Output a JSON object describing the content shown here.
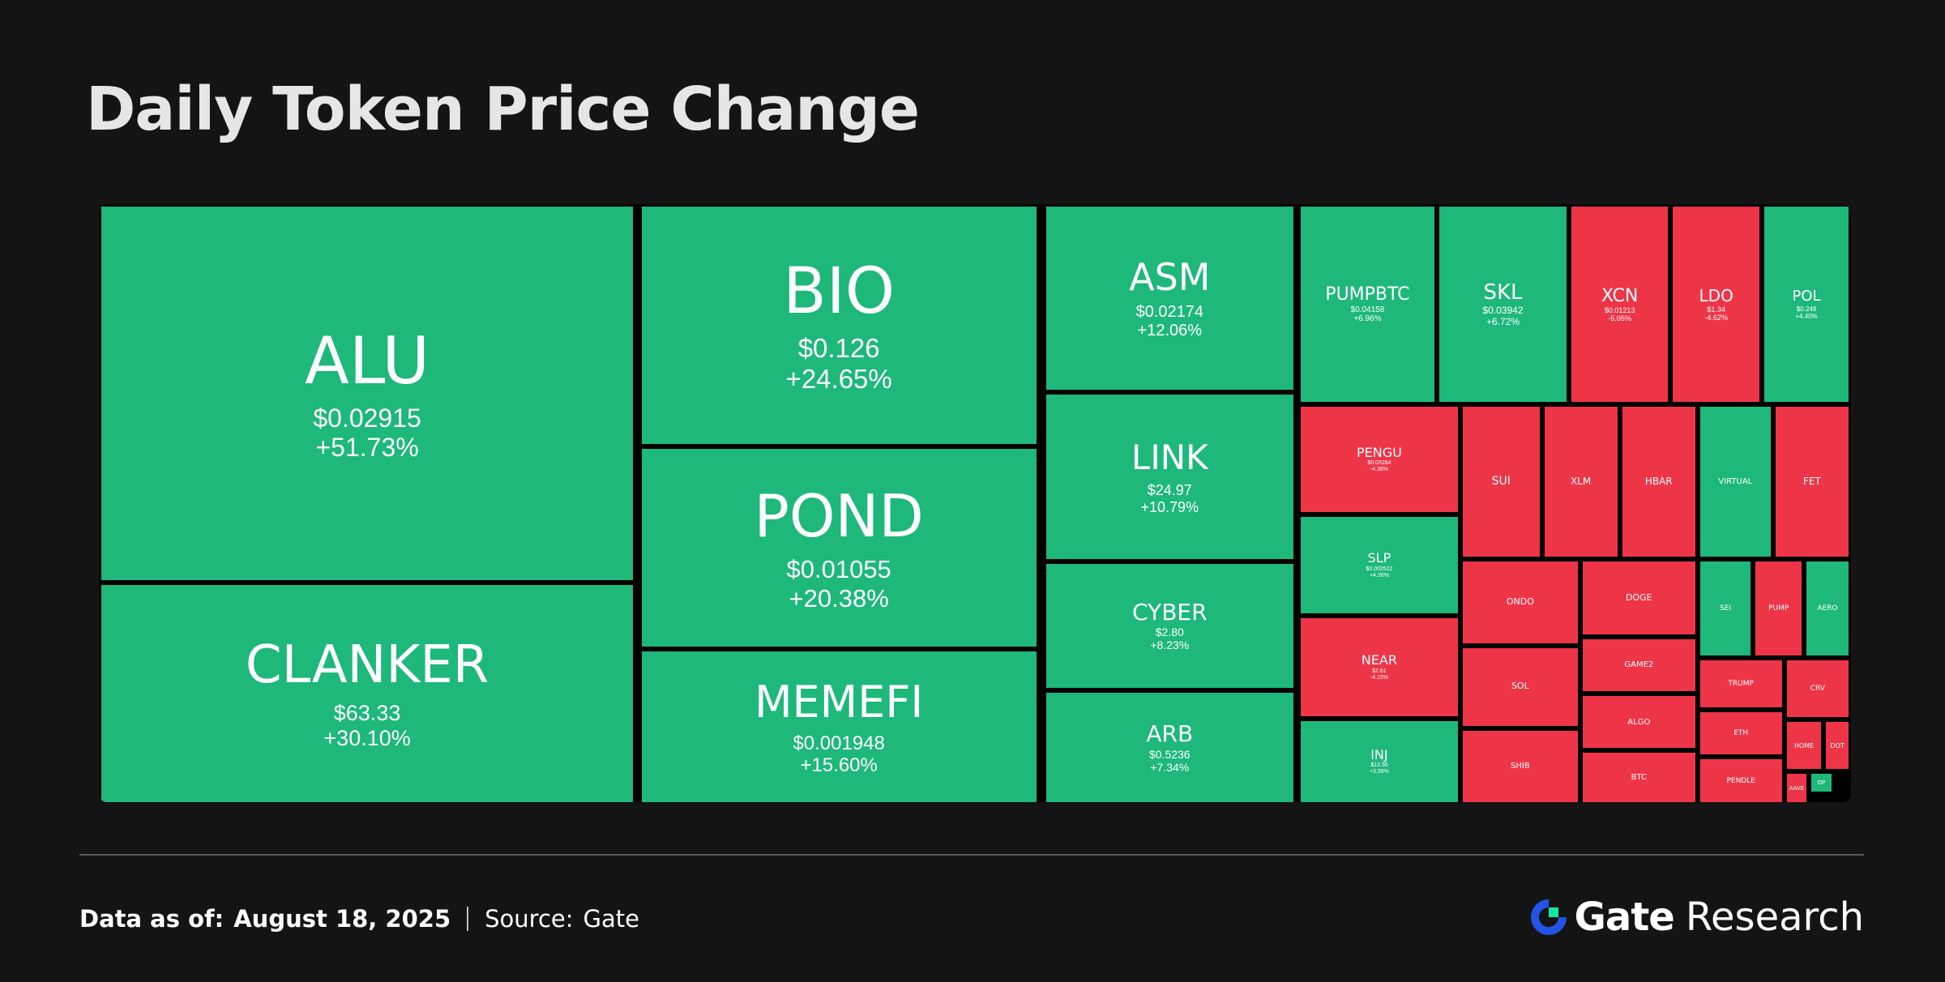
{
  "title": "Daily Token Price Change",
  "colors": {
    "up": "#1db87a",
    "down": "#ee3548",
    "background": "#141414"
  },
  "footer": {
    "data_label": "Data as of:",
    "date": "August 18, 2025",
    "source_label": "Source:",
    "source": "Gate"
  },
  "brand": {
    "name": "Gate",
    "suffix": "Research",
    "logo_icon": "gate-logo-icon"
  },
  "chart_data": {
    "type": "treemap",
    "title": "Daily Token Price Change",
    "tiles": [
      {
        "symbol": "ALU",
        "price": "$0.02915",
        "change": "+51.73%",
        "change_pct": 51.73
      },
      {
        "symbol": "CLANKER",
        "price": "$63.33",
        "change": "+30.10%",
        "change_pct": 30.1
      },
      {
        "symbol": "BIO",
        "price": "$0.126",
        "change": "+24.65%",
        "change_pct": 24.65
      },
      {
        "symbol": "POND",
        "price": "$0.01055",
        "change": "+20.38%",
        "change_pct": 20.38
      },
      {
        "symbol": "MEMEFI",
        "price": "$0.001948",
        "change": "+15.60%",
        "change_pct": 15.6
      },
      {
        "symbol": "ASM",
        "price": "$0.02174",
        "change": "+12.06%",
        "change_pct": 12.06
      },
      {
        "symbol": "LINK",
        "price": "$24.97",
        "change": "+10.79%",
        "change_pct": 10.79
      },
      {
        "symbol": "CYBER",
        "price": "$2.80",
        "change": "+8.23%",
        "change_pct": 8.23
      },
      {
        "symbol": "ARB",
        "price": "$0.5236",
        "change": "+7.34%",
        "change_pct": 7.34
      },
      {
        "symbol": "PUMPBTC",
        "price": "$0.04158",
        "change": "+6.96%",
        "change_pct": 6.96
      },
      {
        "symbol": "SKL",
        "price": "$0.03942",
        "change": "+6.72%",
        "change_pct": 6.72
      },
      {
        "symbol": "XCN",
        "price": "$0.01213",
        "change": "-5.05%",
        "change_pct": -5.05
      },
      {
        "symbol": "LDO",
        "price": "$1.34",
        "change": "-4.62%",
        "change_pct": -4.62
      },
      {
        "symbol": "POL",
        "price": "$0.248",
        "change": "+4.40%",
        "change_pct": 4.4
      },
      {
        "symbol": "PENGU",
        "price": "$0.03284",
        "change": "-4.38%",
        "change_pct": -4.38
      },
      {
        "symbol": "SLP",
        "price": "$0.002522",
        "change": "+4.26%",
        "change_pct": 4.26
      },
      {
        "symbol": "NEAR",
        "price": "$2.61",
        "change": "-4.15%",
        "change_pct": -4.15
      },
      {
        "symbol": "INJ",
        "price": "$13.56",
        "change": "+3.99%",
        "change_pct": 3.99
      },
      {
        "symbol": "SUI",
        "price": "",
        "change": "",
        "change_pct": null
      },
      {
        "symbol": "XLM",
        "price": "",
        "change": "",
        "change_pct": null
      },
      {
        "symbol": "HBAR",
        "price": "",
        "change": "",
        "change_pct": null
      },
      {
        "symbol": "VIRTUAL",
        "price": "",
        "change": "",
        "change_pct": null
      },
      {
        "symbol": "FET",
        "price": "",
        "change": "",
        "change_pct": null
      },
      {
        "symbol": "ONDO",
        "price": "",
        "change": "",
        "change_pct": null
      },
      {
        "symbol": "DOGE",
        "price": "",
        "change": "",
        "change_pct": null
      },
      {
        "symbol": "SEI",
        "price": "",
        "change": "",
        "change_pct": null
      },
      {
        "symbol": "PUMP",
        "price": "",
        "change": "",
        "change_pct": null
      },
      {
        "symbol": "AERO",
        "price": "",
        "change": "",
        "change_pct": null
      },
      {
        "symbol": "GAME2",
        "price": "",
        "change": "",
        "change_pct": null
      },
      {
        "symbol": "TRUMP",
        "price": "",
        "change": "",
        "change_pct": null
      },
      {
        "symbol": "CRV",
        "price": "",
        "change": "",
        "change_pct": null
      },
      {
        "symbol": "SOL",
        "price": "",
        "change": "",
        "change_pct": null
      },
      {
        "symbol": "ALGO",
        "price": "",
        "change": "",
        "change_pct": null
      },
      {
        "symbol": "ETH",
        "price": "",
        "change": "",
        "change_pct": null
      },
      {
        "symbol": "HOME",
        "price": "",
        "change": "",
        "change_pct": null
      },
      {
        "symbol": "DOT",
        "price": "",
        "change": "",
        "change_pct": null
      },
      {
        "symbol": "SHIB",
        "price": "",
        "change": "",
        "change_pct": null
      },
      {
        "symbol": "BTC",
        "price": "",
        "change": "",
        "change_pct": null
      },
      {
        "symbol": "PENDLE",
        "price": "",
        "change": "",
        "change_pct": null
      },
      {
        "symbol": "AAVE",
        "price": "",
        "change": "",
        "change_pct": null
      },
      {
        "symbol": "OP",
        "price": "",
        "change": "",
        "change_pct": null
      }
    ]
  }
}
